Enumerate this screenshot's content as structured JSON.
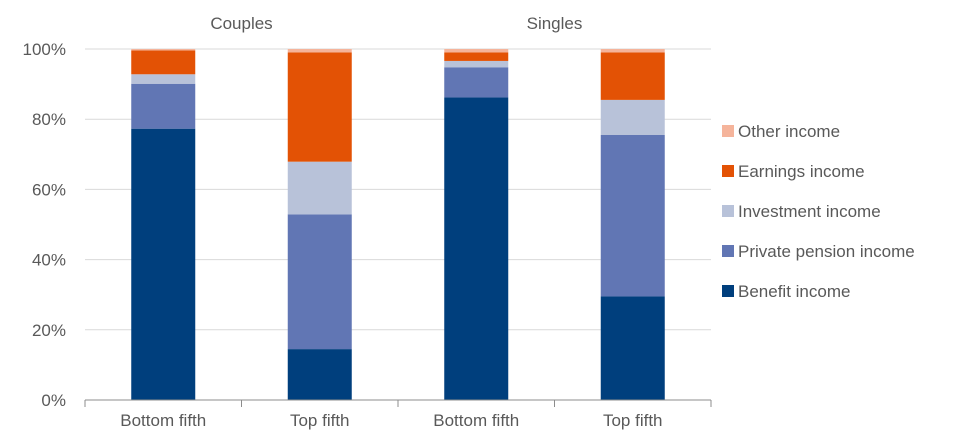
{
  "chart_data": {
    "type": "bar",
    "stacked": true,
    "groups": [
      "Couples",
      "Singles"
    ],
    "categories": [
      "Bottom fifth",
      "Top fifth",
      "Bottom fifth",
      "Top fifth"
    ],
    "category_group": [
      0,
      0,
      1,
      1
    ],
    "series": [
      {
        "name": "Benefit income",
        "color": "#003f7d",
        "values": [
          77.3,
          14.5,
          86.2,
          29.5
        ]
      },
      {
        "name": "Private pension income",
        "color": "#6176b4",
        "values": [
          12.8,
          38.4,
          8.6,
          46.0
        ]
      },
      {
        "name": "Investment income",
        "color": "#b8c2d9",
        "values": [
          2.7,
          15.0,
          1.8,
          10.0
        ]
      },
      {
        "name": "Earnings income",
        "color": "#e35205",
        "values": [
          6.8,
          31.1,
          2.4,
          13.5
        ]
      },
      {
        "name": "Other income",
        "color": "#f5b49b",
        "values": [
          0.4,
          1.0,
          1.0,
          1.0
        ]
      }
    ],
    "yticks": [
      "0%",
      "20%",
      "40%",
      "60%",
      "80%",
      "100%"
    ],
    "ylim": [
      0,
      100
    ],
    "grid": true,
    "legend_position": "right",
    "legend_order": [
      "Other income",
      "Earnings income",
      "Investment income",
      "Private pension income",
      "Benefit income"
    ],
    "title": "",
    "xlabel": "",
    "ylabel": ""
  }
}
